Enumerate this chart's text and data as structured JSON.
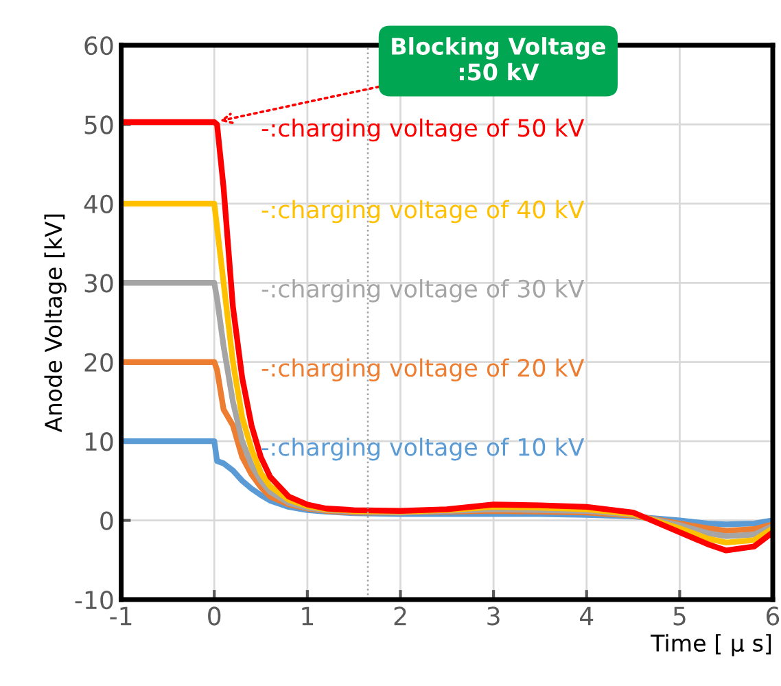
{
  "chart_data": {
    "type": "line",
    "xlabel": "Time [ μ s]",
    "ylabel": "Anode Voltage [kV]",
    "x": [
      -1,
      -0.5,
      0,
      0.03,
      0.1,
      0.2,
      0.3,
      0.4,
      0.5,
      0.6,
      0.8,
      1,
      1.2,
      1.5,
      2,
      2.5,
      3,
      3.5,
      4,
      4.5,
      5,
      5.3,
      5.5,
      5.8,
      6
    ],
    "series": [
      {
        "name": "-:charging voltage of 10 kV",
        "color": "#5b9bd5",
        "values": [
          10,
          10,
          10,
          7.5,
          7.2,
          6.3,
          5,
          4,
          3.2,
          2.5,
          1.7,
          1.3,
          1.1,
          0.9,
          0.8,
          0.8,
          0.8,
          0.8,
          0.7,
          0.5,
          0,
          -0.4,
          -0.5,
          -0.4,
          0
        ]
      },
      {
        "name": "-:charging voltage of 20 kV",
        "color": "#ed7d31",
        "values": [
          20,
          20,
          20,
          19,
          14,
          12,
          8,
          5.8,
          4.2,
          3,
          2,
          1.5,
          1.2,
          1,
          1,
          1.1,
          1.2,
          1.1,
          1,
          0.6,
          -0.4,
          -1,
          -1.3,
          -1.1,
          -0.5
        ]
      },
      {
        "name": "-:charging voltage of 30 kV",
        "color": "#a5a5a5",
        "values": [
          30,
          30,
          30,
          28,
          22,
          15,
          10,
          7,
          5,
          3.6,
          2.2,
          1.6,
          1.3,
          1.1,
          1,
          1.2,
          1.4,
          1.3,
          1.2,
          0.7,
          -0.6,
          -1.6,
          -2,
          -1.8,
          -0.7
        ]
      },
      {
        "name": "-:charging voltage of 40 kV",
        "color": "#ffc000",
        "values": [
          40,
          40,
          40,
          37,
          30,
          20,
          13,
          9,
          6,
          4.3,
          2.6,
          1.8,
          1.4,
          1.2,
          1.1,
          1.3,
          1.7,
          1.6,
          1.4,
          0.8,
          -1,
          -2.3,
          -2.8,
          -2.5,
          -1
        ]
      },
      {
        "name": "-:charging voltage of 50 kV",
        "color": "#ff0000",
        "values": [
          50.3,
          50.3,
          50.3,
          50,
          42,
          27,
          18,
          12,
          8,
          5.5,
          3,
          2,
          1.5,
          1.3,
          1.2,
          1.4,
          2,
          1.9,
          1.7,
          1,
          -1.5,
          -3,
          -3.8,
          -3.3,
          -1.5
        ]
      }
    ],
    "xlim": [
      -1,
      6
    ],
    "xticks": [
      -1,
      0,
      1,
      2,
      3,
      4,
      5,
      6
    ],
    "ylim": [
      -10,
      60
    ],
    "yticks": [
      -10,
      0,
      10,
      20,
      30,
      40,
      50,
      60
    ],
    "grid": true,
    "legend": "top",
    "marker": "none",
    "line_style": "solid",
    "ref_lines": [
      {
        "axis": "x",
        "value": 1.65,
        "color": "#a0a0a0",
        "line_style": "dotted"
      }
    ],
    "annotations": [
      {
        "text": "Blocking Voltage\n:50 kV",
        "x": 0,
        "y": 50.3
      }
    ]
  }
}
